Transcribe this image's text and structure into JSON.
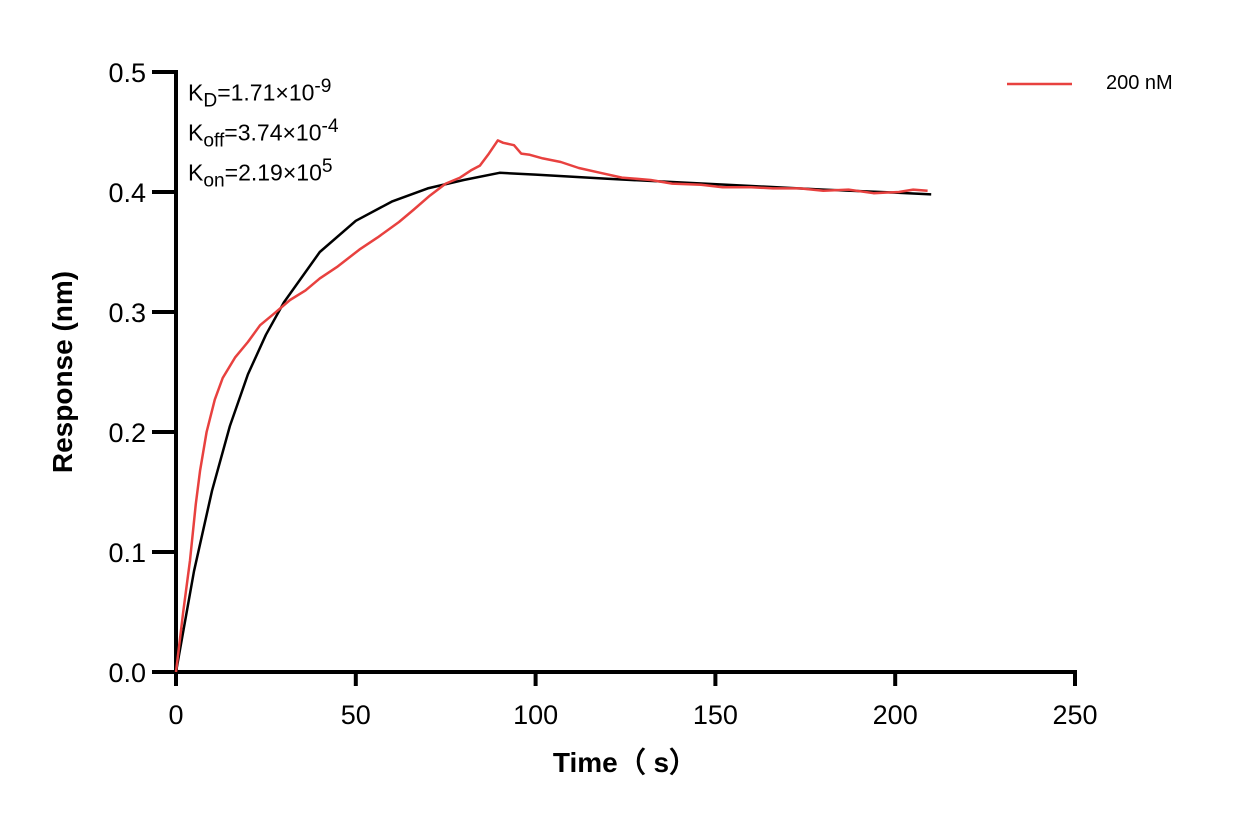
{
  "chart_data": {
    "type": "line",
    "xlabel": "Time（ s）",
    "ylabel": "Response (nm)",
    "xlim": [
      0,
      250
    ],
    "ylim": [
      0,
      0.5
    ],
    "xticks": [
      "0",
      "50",
      "100",
      "150",
      "200",
      "250"
    ],
    "yticks": [
      "0.0",
      "0.1",
      "0.2",
      "0.3",
      "0.4",
      "0.5"
    ],
    "grid": false,
    "legend_position": "top-right",
    "annotations": {
      "kd": {
        "base": "K",
        "sub": "D",
        "value": "=1.71×10",
        "exp": "-9"
      },
      "koff": {
        "base": "K",
        "sub": "off",
        "value": "=3.74×10",
        "exp": "-4"
      },
      "kon": {
        "base": "K",
        "sub": "on",
        "value": "=2.19×10",
        "exp": "5"
      }
    },
    "series": [
      {
        "name": "200 nM",
        "color": "#e8413f",
        "x": [
          0,
          2,
          3.9,
          5.5,
          6.7,
          8.5,
          10.8,
          13,
          16.4,
          20,
          23.4,
          27,
          31.7,
          36,
          40,
          45,
          51,
          56,
          62,
          66,
          70.6,
          75,
          79,
          82,
          84.5,
          87,
          89.5,
          91,
          94,
          96,
          98.4,
          102,
          107,
          112,
          118,
          124,
          132,
          138,
          146,
          152,
          160,
          166,
          173.5,
          180,
          187,
          194,
          201,
          205,
          209
        ],
        "y": [
          0,
          0.05,
          0.093,
          0.14,
          0.168,
          0.2,
          0.227,
          0.245,
          0.262,
          0.275,
          0.289,
          0.298,
          0.31,
          0.318,
          0.328,
          0.338,
          0.352,
          0.362,
          0.375,
          0.385,
          0.397,
          0.407,
          0.412,
          0.418,
          0.422,
          0.432,
          0.443,
          0.441,
          0.439,
          0.432,
          0.431,
          0.428,
          0.425,
          0.42,
          0.416,
          0.412,
          0.41,
          0.407,
          0.406,
          0.404,
          0.404,
          0.403,
          0.403,
          0.401,
          0.402,
          0.399,
          0.4,
          0.402,
          0.401
        ]
      },
      {
        "name": "",
        "color": "#000000",
        "x": [
          0,
          5,
          10,
          15,
          20,
          25,
          30,
          40,
          50,
          60,
          70,
          80,
          90,
          100,
          120,
          140,
          160,
          180,
          200,
          210
        ],
        "y": [
          0,
          0.084,
          0.151,
          0.205,
          0.248,
          0.281,
          0.308,
          0.35,
          0.376,
          0.392,
          0.403,
          0.41,
          0.416,
          0.4145,
          0.411,
          0.408,
          0.405,
          0.402,
          0.3995,
          0.398
        ]
      }
    ]
  }
}
